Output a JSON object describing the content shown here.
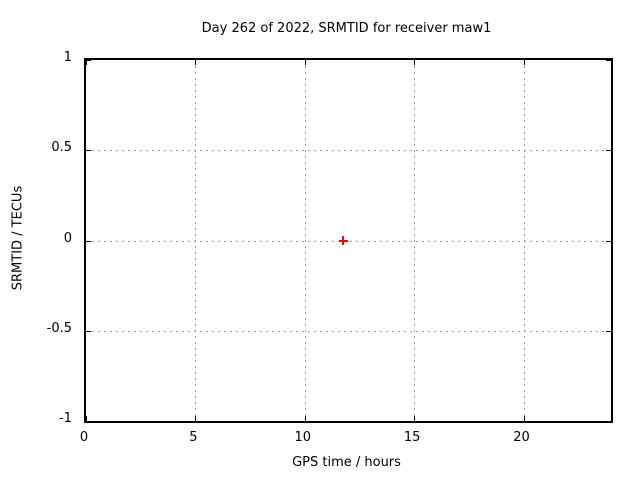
{
  "window": {
    "background_color": "#ffffff",
    "text_color": "#000000"
  },
  "chart_data": {
    "type": "scatter",
    "title": "Day 262 of 2022, SRMTID for receiver maw1",
    "xlabel": "GPS time / hours",
    "ylabel": "SRMTID / TECUs",
    "xlim": [
      0,
      24
    ],
    "ylim": [
      -1,
      1
    ],
    "xticks": [
      {
        "value": 0,
        "label": "0"
      },
      {
        "value": 5,
        "label": "5"
      },
      {
        "value": 10,
        "label": "10"
      },
      {
        "value": 15,
        "label": "15"
      },
      {
        "value": 20,
        "label": "20"
      }
    ],
    "yticks": [
      {
        "value": 1,
        "label": "1"
      },
      {
        "value": 0.5,
        "label": "0.5"
      },
      {
        "value": 0,
        "label": "0"
      },
      {
        "value": -0.5,
        "label": "-0.5"
      },
      {
        "value": -1,
        "label": "-1"
      }
    ],
    "grid": true,
    "grid_style": "dotted",
    "grid_color": "#999999",
    "axis_color": "#000000",
    "tick_style": "inward-mirrored",
    "legend_position": "none",
    "series": [
      {
        "name": "SRMTID",
        "marker": "plus",
        "color": "#ff0000",
        "points": [
          {
            "x": 11.75,
            "y": 0
          }
        ]
      }
    ]
  }
}
